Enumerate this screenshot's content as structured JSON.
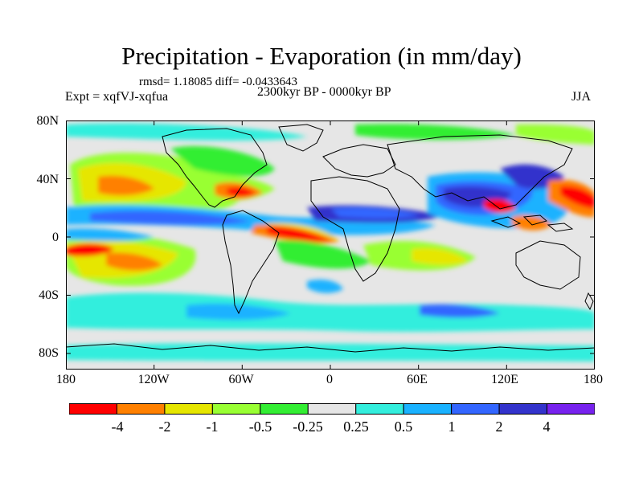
{
  "title": "Precipitation - Evaporation (in mm/day)",
  "stats": "rmsd= 1.18085 diff= -0.0433643",
  "experiment": "Expt = xqfVJ-xqfua",
  "period": "2300kyr BP - 0000kyr BP",
  "season": "JJA",
  "lat_labels": [
    "80N",
    "40N",
    "0",
    "40S",
    "80S"
  ],
  "lon_labels": [
    "180",
    "120W",
    "60W",
    "0",
    "60E",
    "120E",
    "180"
  ],
  "colorbar": {
    "colors": [
      "#ff0000",
      "#ff8000",
      "#e6e600",
      "#99ff33",
      "#33ee33",
      "#e6e6e6",
      "#33eedd",
      "#1ab2ff",
      "#3366ff",
      "#3333cc",
      "#7722ee"
    ],
    "labels": [
      "-4",
      "-2",
      "-1",
      "-0.5",
      "-0.25",
      "0.25",
      "0.5",
      "1",
      "2",
      "4"
    ]
  }
}
